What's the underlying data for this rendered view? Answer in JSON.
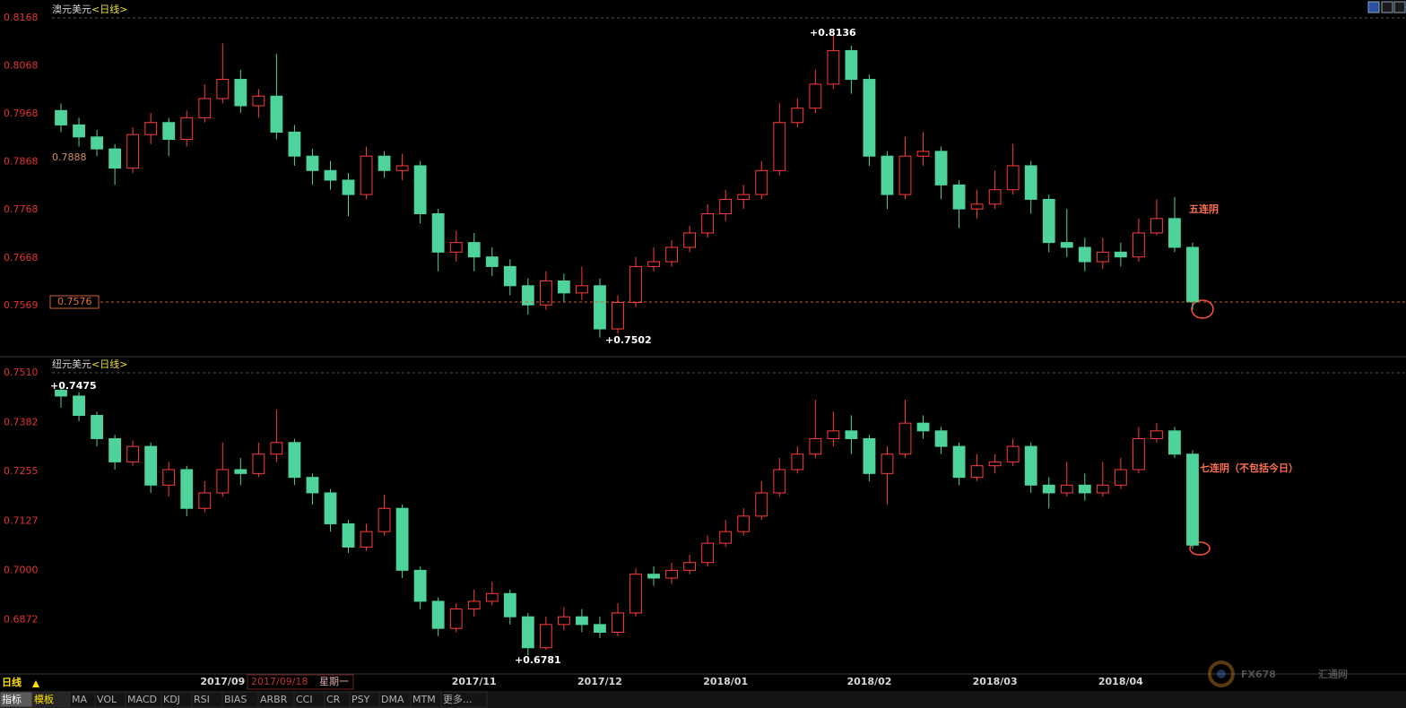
{
  "chart_data": [
    {
      "type": "candlestick",
      "title": "澳元美元",
      "period": "<日线>",
      "ylim": [
        0.7464,
        0.8168
      ],
      "yticks": [
        0.7569,
        0.7668,
        0.7768,
        0.7868,
        0.7968,
        0.8068,
        0.8168
      ],
      "up_color": "#ff3c3c",
      "down_color": "#4ed39b",
      "last_price": 0.7576,
      "cursor_price": 0.7888,
      "annotations": [
        "+0.8136",
        "+0.7502",
        "五连阴"
      ],
      "open": [
        0.7975,
        0.7945,
        0.792,
        0.7895,
        0.7855,
        0.7925,
        0.795,
        0.7915,
        0.796,
        0.8,
        0.804,
        0.7985,
        0.8005,
        0.793,
        0.788,
        0.785,
        0.783,
        0.78,
        0.788,
        0.785,
        0.786,
        0.776,
        0.768,
        0.77,
        0.767,
        0.765,
        0.761,
        0.757,
        0.762,
        0.7595,
        0.761,
        0.752,
        0.7575,
        0.765,
        0.766,
        0.769,
        0.772,
        0.776,
        0.779,
        0.78,
        0.785,
        0.795,
        0.798,
        0.803,
        0.81,
        0.804,
        0.788,
        0.78,
        0.788,
        0.789,
        0.782,
        0.777,
        0.778,
        0.781,
        0.786,
        0.779,
        0.77,
        0.769,
        0.766,
        0.768,
        0.767,
        0.772,
        0.775,
        0.769
      ],
      "high": [
        0.799,
        0.796,
        0.7935,
        0.7905,
        0.794,
        0.797,
        0.796,
        0.7975,
        0.803,
        0.8115,
        0.806,
        0.802,
        0.8093,
        0.7945,
        0.7895,
        0.787,
        0.7845,
        0.79,
        0.789,
        0.7885,
        0.787,
        0.777,
        0.7725,
        0.772,
        0.769,
        0.7665,
        0.7625,
        0.764,
        0.7635,
        0.765,
        0.7625,
        0.759,
        0.767,
        0.769,
        0.7705,
        0.7735,
        0.778,
        0.781,
        0.782,
        0.787,
        0.799,
        0.8,
        0.806,
        0.8136,
        0.811,
        0.805,
        0.789,
        0.792,
        0.793,
        0.79,
        0.783,
        0.781,
        0.785,
        0.7905,
        0.787,
        0.78,
        0.777,
        0.771,
        0.771,
        0.77,
        0.775,
        0.779,
        0.7795,
        0.77
      ],
      "low": [
        0.793,
        0.79,
        0.788,
        0.782,
        0.7845,
        0.7905,
        0.788,
        0.79,
        0.795,
        0.799,
        0.797,
        0.796,
        0.7915,
        0.786,
        0.782,
        0.781,
        0.7755,
        0.779,
        0.7835,
        0.783,
        0.774,
        0.764,
        0.766,
        0.764,
        0.763,
        0.759,
        0.755,
        0.756,
        0.7575,
        0.758,
        0.7502,
        0.751,
        0.7565,
        0.764,
        0.765,
        0.768,
        0.771,
        0.7745,
        0.777,
        0.779,
        0.784,
        0.794,
        0.797,
        0.802,
        0.801,
        0.786,
        0.777,
        0.779,
        0.786,
        0.779,
        0.773,
        0.775,
        0.777,
        0.78,
        0.776,
        0.768,
        0.767,
        0.764,
        0.7645,
        0.765,
        0.766,
        0.7715,
        0.768,
        0.756
      ],
      "close": [
        0.7945,
        0.792,
        0.7895,
        0.7855,
        0.7925,
        0.795,
        0.7915,
        0.796,
        0.8,
        0.804,
        0.7985,
        0.8005,
        0.793,
        0.788,
        0.785,
        0.783,
        0.78,
        0.788,
        0.785,
        0.786,
        0.776,
        0.768,
        0.77,
        0.767,
        0.765,
        0.761,
        0.757,
        0.762,
        0.7595,
        0.761,
        0.752,
        0.7575,
        0.765,
        0.766,
        0.769,
        0.772,
        0.776,
        0.779,
        0.78,
        0.785,
        0.795,
        0.798,
        0.803,
        0.81,
        0.804,
        0.788,
        0.78,
        0.788,
        0.789,
        0.782,
        0.777,
        0.778,
        0.781,
        0.786,
        0.779,
        0.77,
        0.769,
        0.766,
        0.768,
        0.767,
        0.772,
        0.775,
        0.769,
        0.7576
      ]
    },
    {
      "type": "candlestick",
      "title": "纽元美元",
      "period": "<日线>",
      "ylim": [
        0.6737,
        0.751
      ],
      "yticks": [
        0.6872,
        {
          "value": 0.7,
          "label": "0.7000"
        },
        0.7127,
        0.7255,
        0.7382,
        {
          "value": 0.751,
          "label": "0.7510"
        }
      ],
      "up_color": "#ff3c3c",
      "down_color": "#4ed39b",
      "annotations": [
        "+0.7475",
        "+0.6781",
        "七连阴（不包括今日）"
      ],
      "categories": [
        null,
        null,
        null,
        null,
        null,
        null,
        null,
        null,
        null,
        "2017/09",
        null,
        null,
        null,
        null,
        null,
        null,
        null,
        null,
        null,
        null,
        null,
        null,
        null,
        "2017/11",
        null,
        null,
        null,
        null,
        null,
        null,
        "2017/12",
        null,
        null,
        null,
        null,
        null,
        null,
        "2018/01",
        null,
        null,
        null,
        null,
        null,
        null,
        null,
        "2018/02",
        null,
        null,
        null,
        null,
        null,
        null,
        "2018/03",
        null,
        null,
        null,
        null,
        null,
        null,
        "2018/04",
        null,
        null,
        null,
        null
      ],
      "open": [
        0.7465,
        0.745,
        0.74,
        0.734,
        0.728,
        0.732,
        0.722,
        0.726,
        0.716,
        0.72,
        0.726,
        0.725,
        0.73,
        0.733,
        0.724,
        0.72,
        0.712,
        0.706,
        0.71,
        0.716,
        0.7,
        0.692,
        0.685,
        0.69,
        0.692,
        0.694,
        0.688,
        0.68,
        0.686,
        0.688,
        0.686,
        0.684,
        0.689,
        0.699,
        0.698,
        0.7,
        0.702,
        0.707,
        0.71,
        0.714,
        0.72,
        0.726,
        0.73,
        0.734,
        0.736,
        0.734,
        0.725,
        0.73,
        0.738,
        0.736,
        0.732,
        0.724,
        0.727,
        0.728,
        0.732,
        0.722,
        0.72,
        0.722,
        0.72,
        0.722,
        0.726,
        0.734,
        0.736,
        0.73
      ],
      "high": [
        0.7475,
        0.746,
        0.741,
        0.735,
        0.7335,
        0.733,
        0.728,
        0.727,
        0.723,
        0.733,
        0.729,
        0.733,
        0.7415,
        0.734,
        0.725,
        0.721,
        0.713,
        0.712,
        0.7195,
        0.717,
        0.701,
        0.693,
        0.6915,
        0.695,
        0.697,
        0.695,
        0.689,
        0.688,
        0.6905,
        0.69,
        0.688,
        0.6915,
        0.7005,
        0.701,
        0.702,
        0.704,
        0.709,
        0.713,
        0.716,
        0.723,
        0.729,
        0.732,
        0.744,
        0.741,
        0.74,
        0.735,
        0.732,
        0.744,
        0.74,
        0.737,
        0.733,
        0.73,
        0.73,
        0.734,
        0.733,
        0.724,
        0.728,
        0.725,
        0.728,
        0.729,
        0.737,
        0.738,
        0.737,
        0.731
      ],
      "low": [
        0.742,
        0.7385,
        0.732,
        0.726,
        0.727,
        0.72,
        0.719,
        0.714,
        0.715,
        0.719,
        0.722,
        0.724,
        0.728,
        0.722,
        0.717,
        0.71,
        0.7045,
        0.705,
        0.709,
        0.698,
        0.69,
        0.683,
        0.684,
        0.688,
        0.691,
        0.686,
        0.6781,
        0.6795,
        0.6845,
        0.684,
        0.6825,
        0.683,
        0.688,
        0.696,
        0.6965,
        0.699,
        0.701,
        0.706,
        0.709,
        0.713,
        0.719,
        0.725,
        0.729,
        0.732,
        0.73,
        0.723,
        0.717,
        0.729,
        0.734,
        0.73,
        0.722,
        0.723,
        0.725,
        0.727,
        0.72,
        0.716,
        0.719,
        0.718,
        0.719,
        0.721,
        0.725,
        0.733,
        0.729,
        0.7055
      ],
      "close": [
        0.745,
        0.74,
        0.734,
        0.728,
        0.732,
        0.722,
        0.726,
        0.716,
        0.72,
        0.726,
        0.725,
        0.73,
        0.733,
        0.724,
        0.72,
        0.712,
        0.706,
        0.71,
        0.716,
        0.7,
        0.692,
        0.685,
        0.69,
        0.692,
        0.694,
        0.688,
        0.68,
        0.686,
        0.688,
        0.686,
        0.684,
        0.689,
        0.699,
        0.698,
        0.7,
        0.702,
        0.707,
        0.71,
        0.714,
        0.72,
        0.726,
        0.73,
        0.734,
        0.736,
        0.734,
        0.725,
        0.73,
        0.738,
        0.736,
        0.732,
        0.724,
        0.727,
        0.728,
        0.732,
        0.722,
        0.72,
        0.722,
        0.72,
        0.722,
        0.726,
        0.734,
        0.736,
        0.73,
        0.7065
      ]
    }
  ],
  "toolbar": {
    "period": "日线",
    "date": "2017/09/18",
    "weekday": "星期一",
    "tabs": [
      "指标",
      "模板",
      "MA",
      "VOL",
      "MACD",
      "KDJ",
      "RSI",
      "BIAS",
      "ARBR",
      "CCI",
      "CR",
      "PSY",
      "DMA",
      "MTM",
      "更多..."
    ]
  },
  "watermark": {
    "brand": "FX678",
    "name": "汇通网"
  }
}
